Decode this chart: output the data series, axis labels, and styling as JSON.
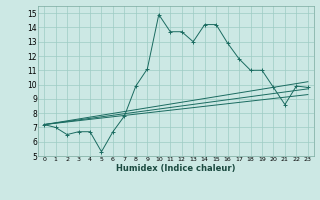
{
  "title": "",
  "xlabel": "Humidex (Indice chaleur)",
  "ylabel": "",
  "bg_color": "#cce8e4",
  "line_color": "#1a6b60",
  "xlim": [
    -0.5,
    23.5
  ],
  "ylim": [
    5,
    15.5
  ],
  "yticks": [
    5,
    6,
    7,
    8,
    9,
    10,
    11,
    12,
    13,
    14,
    15
  ],
  "xticks": [
    0,
    1,
    2,
    3,
    4,
    5,
    6,
    7,
    8,
    9,
    10,
    11,
    12,
    13,
    14,
    15,
    16,
    17,
    18,
    19,
    20,
    21,
    22,
    23
  ],
  "series": [
    {
      "x": [
        0,
        1,
        2,
        3,
        4,
        5,
        6,
        7,
        8,
        9,
        10,
        11,
        12,
        13,
        14,
        15,
        16,
        17,
        18,
        19,
        20,
        21,
        22,
        23
      ],
      "y": [
        7.2,
        7.0,
        6.5,
        6.7,
        6.7,
        5.3,
        6.7,
        7.8,
        9.9,
        11.1,
        14.9,
        13.7,
        13.7,
        13.0,
        14.2,
        14.2,
        12.9,
        11.8,
        11.0,
        11.0,
        9.8,
        8.6,
        9.9,
        9.8
      ]
    },
    {
      "x": [
        0,
        23
      ],
      "y": [
        7.2,
        10.2
      ]
    },
    {
      "x": [
        0,
        23
      ],
      "y": [
        7.2,
        9.7
      ]
    },
    {
      "x": [
        0,
        23
      ],
      "y": [
        7.2,
        9.3
      ]
    }
  ]
}
